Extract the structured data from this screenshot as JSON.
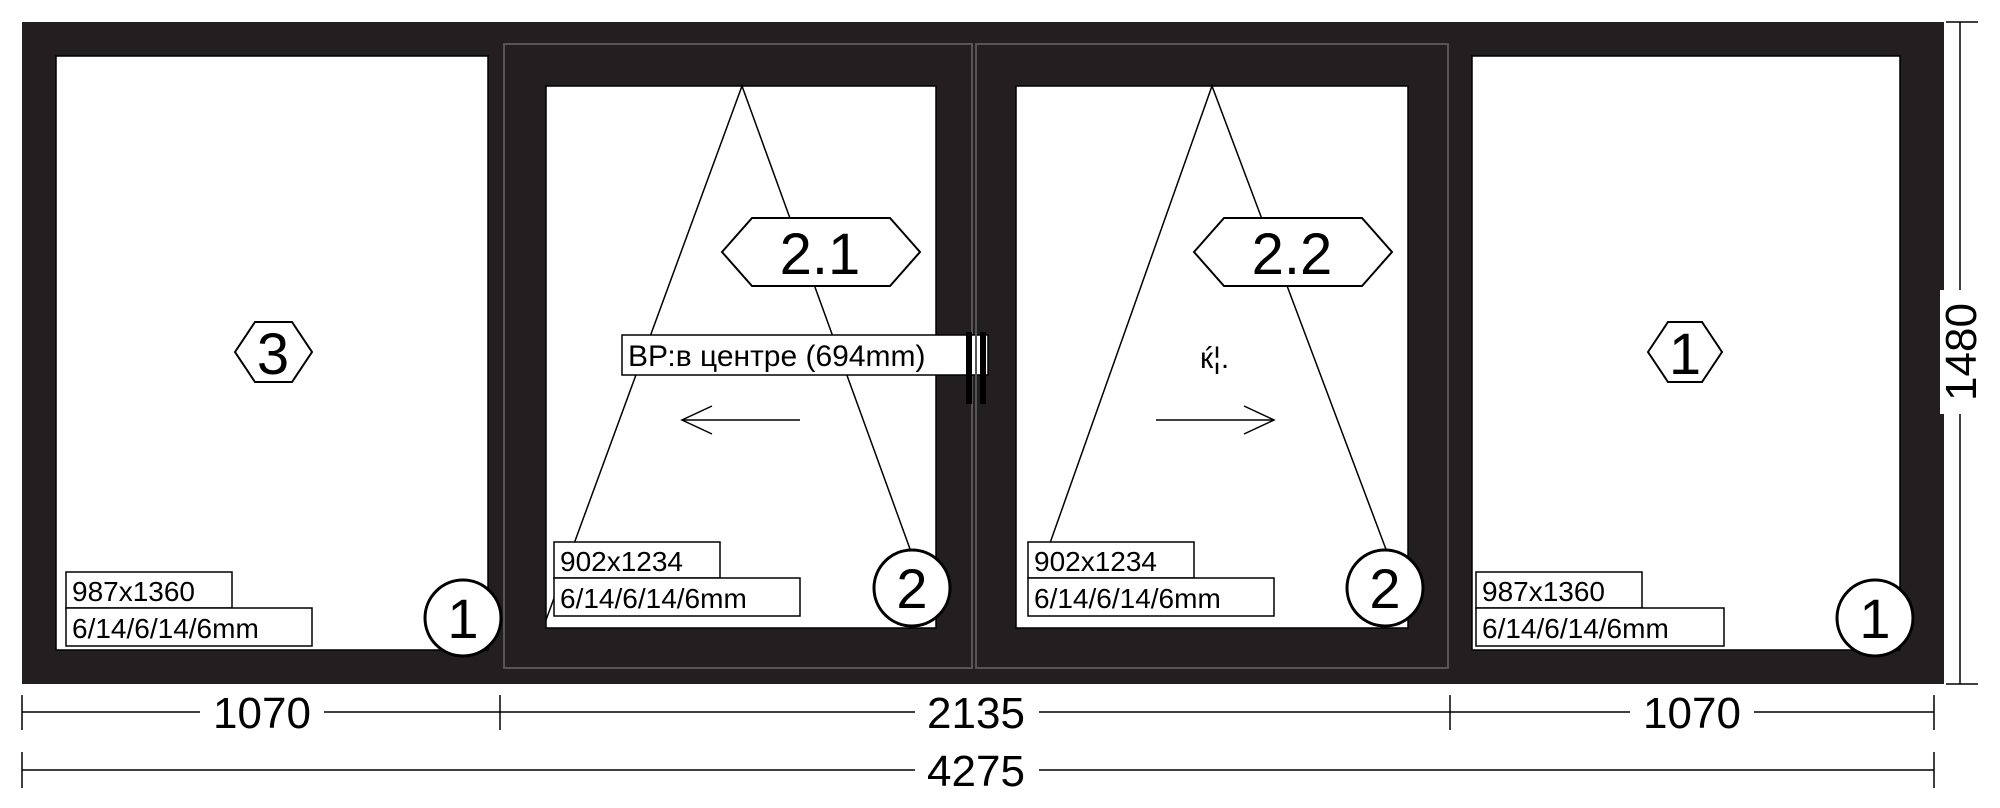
{
  "panes": {
    "left": {
      "hex_label": "3",
      "size": "987x1360",
      "glass": "6/14/6/14/6mm",
      "circle": "1"
    },
    "sash1": {
      "hex_label": "2.1",
      "size": "902x1234",
      "glass": "6/14/6/14/6mm",
      "circle": "2"
    },
    "sash2": {
      "hex_label": "2.2",
      "size": "902x1234",
      "glass": "6/14/6/14/6mm",
      "circle": "2"
    },
    "right": {
      "hex_label": "1",
      "size": "987x1360",
      "glass": "6/14/6/14/6mm",
      "circle": "1"
    }
  },
  "handle_note": "ВР:в центре (694mm)",
  "handle_symbol": "ќ¦.",
  "dimensions": {
    "left_width": "1070",
    "middle_width": "2135",
    "right_width": "1070",
    "total_width": "4275",
    "height": "1480"
  },
  "colors": {
    "frame": "#231f20",
    "glass": "#ffffff",
    "lines": "#000000"
  }
}
